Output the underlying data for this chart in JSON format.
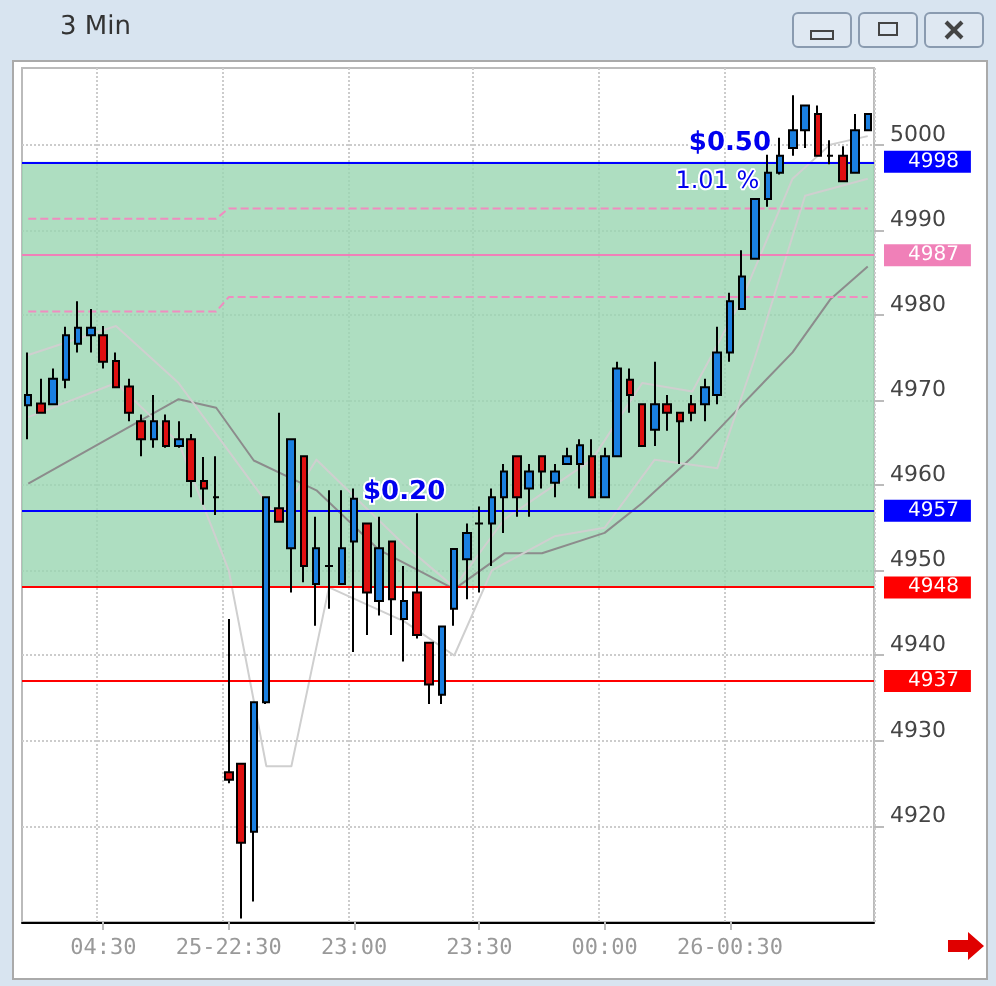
{
  "chart_data": {
    "type": "candlestick",
    "title": "3 Min",
    "categories": [
      null,
      null,
      null,
      null,
      null,
      null,
      "04:30",
      null,
      null,
      null,
      null,
      null,
      null,
      null,
      null,
      null,
      "25-22:30",
      null,
      null,
      null,
      null,
      null,
      null,
      null,
      null,
      null,
      "23:00",
      null,
      null,
      null,
      null,
      null,
      null,
      null,
      null,
      null,
      "23:30",
      null,
      null,
      null,
      null,
      null,
      null,
      null,
      null,
      null,
      "00:00",
      null,
      null,
      null,
      null,
      null,
      null,
      null,
      null,
      null,
      "26-00:30",
      null,
      null,
      null,
      null,
      null,
      null,
      null,
      null,
      null,
      null,
      null
    ],
    "ohlc": [
      [
        4969.4,
        4975.6,
        4965.4,
        4970.6
      ],
      [
        4969.6,
        4972.5,
        4968.5,
        4968.5
      ],
      [
        4969.5,
        4973.7,
        4969.5,
        4972.5
      ],
      [
        4972.4,
        4978.6,
        4971.4,
        4977.6
      ],
      [
        4976.6,
        4981.6,
        4975.6,
        4978.5
      ],
      [
        4977.6,
        4980.7,
        4975.6,
        4978.5
      ],
      [
        4977.6,
        4978.7,
        4973.7,
        4974.5
      ],
      [
        4974.6,
        4975.6,
        4971.5,
        4971.5
      ],
      [
        4971.6,
        4972.5,
        4967.5,
        4968.5
      ],
      [
        4967.5,
        4968.3,
        4963.4,
        4965.4
      ],
      [
        4965.4,
        4970.6,
        4964.4,
        4967.5
      ],
      [
        4967.5,
        4968.3,
        4964.4,
        4964.6
      ],
      [
        4964.6,
        4967.5,
        4964.4,
        4965.4
      ],
      [
        4965.4,
        4966.0,
        4958.6,
        4960.5
      ],
      [
        4960.5,
        4963.3,
        4957.7,
        4959.6
      ],
      [
        4958.6,
        4963.4,
        4956.5,
        4958.6
      ],
      [
        4926.3,
        4944.3,
        4925.0,
        4925.4
      ],
      [
        4927.3,
        4927.3,
        4909.1,
        4918.0
      ],
      [
        4919.3,
        4934.5,
        4911.1,
        4934.5
      ],
      [
        4934.5,
        4958.6,
        4934.3,
        4958.6
      ],
      [
        4957.3,
        4968.5,
        4955.7,
        4955.7
      ],
      [
        4952.6,
        4965.4,
        4947.4,
        4965.4
      ],
      [
        4963.4,
        4963.4,
        4948.6,
        4950.5
      ],
      [
        4948.4,
        4956.3,
        4943.5,
        4952.6
      ],
      [
        4950.5,
        4959.4,
        4945.5,
        4950.5
      ],
      [
        4948.4,
        4959.4,
        4948.4,
        4952.6
      ],
      [
        4953.4,
        4959.6,
        4940.4,
        4958.4
      ],
      [
        4955.5,
        4955.5,
        4942.4,
        4947.4
      ],
      [
        4946.4,
        4956.3,
        4944.7,
        4952.6
      ],
      [
        4953.4,
        4953.4,
        4942.4,
        4946.6
      ],
      [
        4944.3,
        4950.5,
        4939.3,
        4946.4
      ],
      [
        4947.4,
        4956.7,
        4942.0,
        4942.4
      ],
      [
        4941.5,
        4941.5,
        4934.3,
        4936.6
      ],
      [
        4935.4,
        4943.4,
        4934.3,
        4943.4
      ],
      [
        4945.5,
        4952.5,
        4943.5,
        4952.5
      ],
      [
        4951.3,
        4955.5,
        4946.6,
        4954.4
      ],
      [
        4955.5,
        4957.5,
        4947.4,
        4955.5
      ],
      [
        4955.5,
        4959.6,
        4950.5,
        4958.6
      ],
      [
        4958.6,
        4962.5,
        4954.4,
        4961.6
      ],
      [
        4963.4,
        4963.4,
        4956.3,
        4958.6
      ],
      [
        4959.6,
        4962.5,
        4956.3,
        4961.6
      ],
      [
        4963.4,
        4963.4,
        4959.6,
        4961.6
      ],
      [
        4960.3,
        4962.5,
        4958.6,
        4961.6
      ],
      [
        4962.5,
        4964.4,
        4962.5,
        4963.4
      ],
      [
        4962.5,
        4965.4,
        4959.6,
        4964.7
      ],
      [
        4963.4,
        4965.4,
        4958.6,
        4958.6
      ],
      [
        4958.6,
        4964.4,
        4958.6,
        4963.4
      ],
      [
        4963.4,
        4974.5,
        4963.4,
        4973.7
      ],
      [
        4972.4,
        4973.7,
        4968.5,
        4970.6
      ],
      [
        4969.5,
        4969.5,
        4964.6,
        4964.6
      ],
      [
        4966.5,
        4974.5,
        4964.6,
        4969.5
      ],
      [
        4969.5,
        4970.6,
        4966.4,
        4968.5
      ],
      [
        4968.5,
        4968.5,
        4962.5,
        4967.5
      ],
      [
        4969.5,
        4970.6,
        4967.5,
        4968.5
      ],
      [
        4969.5,
        4972.5,
        4967.5,
        4971.5
      ],
      [
        4970.6,
        4978.6,
        4969.5,
        4975.6
      ],
      [
        4975.6,
        4982.6,
        4974.5,
        4981.6
      ],
      [
        4980.7,
        4987.6,
        4980.7,
        4984.5
      ],
      [
        4986.6,
        4993.6,
        4986.6,
        4993.6
      ],
      [
        4993.6,
        4998.8,
        4992.7,
        4996.7
      ],
      [
        4996.7,
        5000.8,
        4996.5,
        4998.7
      ],
      [
        4999.6,
        5005.8,
        4998.7,
        5001.7
      ],
      [
        5001.7,
        5004.6,
        4999.6,
        5004.6
      ],
      [
        5003.6,
        5004.6,
        4998.7,
        4998.7
      ],
      [
        4998.7,
        5000.5,
        4997.7,
        4998.7
      ],
      [
        4998.7,
        4999.8,
        4995.7,
        4995.7
      ],
      [
        4996.7,
        5003.6,
        4996.7,
        5001.7
      ],
      [
        5001.7,
        5003.6,
        5001.7,
        5003.6
      ]
    ],
    "colors": [
      "#1a7fe0",
      "#e01010",
      "#1a7fe0",
      "#1a7fe0",
      "#1a7fe0",
      "#1a7fe0",
      "#e01010",
      "#e01010",
      "#e01010",
      "#e01010",
      "#1a7fe0",
      "#e01010",
      "#1a7fe0",
      "#e01010",
      "#e01010",
      "#000000",
      "#e01010",
      "#e01010",
      "#1a7fe0",
      "#1a7fe0",
      "#e01010",
      "#1a7fe0",
      "#e01010",
      "#1a7fe0",
      "#000000",
      "#1a7fe0",
      "#1a7fe0",
      "#e01010",
      "#1a7fe0",
      "#e01010",
      "#1a7fe0",
      "#e01010",
      "#e01010",
      "#1a7fe0",
      "#1a7fe0",
      "#1a7fe0",
      "#000000",
      "#1a7fe0",
      "#1a7fe0",
      "#e01010",
      "#1a7fe0",
      "#e01010",
      "#1a7fe0",
      "#1a7fe0",
      "#1a7fe0",
      "#e01010",
      "#1a7fe0",
      "#1a7fe0",
      "#e01010",
      "#e01010",
      "#1a7fe0",
      "#e01010",
      "#e01010",
      "#e01010",
      "#1a7fe0",
      "#1a7fe0",
      "#1a7fe0",
      "#1a7fe0",
      "#1a7fe0",
      "#1a7fe0",
      "#1a7fe0",
      "#1a7fe0",
      "#1a7fe0",
      "#e01010",
      "#000000",
      "#e01010",
      "#1a7fe0",
      "#1a7fe0"
    ],
    "series": [
      {
        "type": "line",
        "color": "#8c8c8c",
        "values": [
          4960.2,
          null,
          null,
          null,
          null,
          null,
          null,
          null,
          null,
          null,
          null,
          null,
          4970.1,
          null,
          null,
          4969.1,
          null,
          null,
          4962.9,
          null,
          null,
          null,
          null,
          4959.4,
          null,
          null,
          null,
          null,
          4952.4,
          null,
          null,
          null,
          null,
          null,
          4947.8,
          null,
          null,
          null,
          4952.0,
          null,
          null,
          4952.0,
          null,
          null,
          null,
          null,
          4954.4,
          null,
          null,
          4957.9,
          null,
          null,
          null,
          4963.3,
          null,
          null,
          null,
          4969.5,
          null,
          null,
          null,
          4975.6,
          null,
          null,
          4981.8,
          null,
          null,
          4985.7
        ]
      },
      {
        "type": "line",
        "color": "#cfcfcf",
        "values": [
          4975.3,
          null,
          null,
          null,
          null,
          null,
          null,
          4978.7,
          null,
          null,
          null,
          null,
          4972,
          null,
          null,
          null,
          4964,
          null,
          null,
          null,
          4956,
          null,
          null,
          4963,
          null,
          null,
          null,
          null,
          null,
          null,
          4953,
          null,
          null,
          null,
          4948,
          null,
          null,
          null,
          4956,
          null,
          null,
          null,
          null,
          null,
          null,
          4963,
          null,
          null,
          null,
          4972,
          null,
          null,
          null,
          4971,
          null,
          null,
          null,
          4982,
          null,
          null,
          null,
          4996,
          null,
          null,
          5000,
          null,
          null,
          5001
        ]
      },
      {
        "type": "line",
        "color": "#cfcfcf",
        "values": [
          4968,
          null,
          null,
          null,
          null,
          null,
          null,
          4972,
          null,
          null,
          null,
          null,
          4965,
          null,
          null,
          null,
          4950,
          null,
          null,
          4927,
          null,
          4927,
          null,
          null,
          4948,
          null,
          null,
          null,
          null,
          null,
          4944,
          null,
          null,
          null,
          4940,
          null,
          null,
          4950,
          null,
          null,
          null,
          null,
          4954,
          null,
          null,
          null,
          4955,
          null,
          null,
          null,
          4963,
          null,
          null,
          null,
          null,
          4962,
          null,
          null,
          4975,
          null,
          null,
          null,
          4994,
          null,
          null,
          null,
          null,
          4996
        ]
      },
      {
        "type": "line",
        "color": "#f08cc0",
        "line_style": "dashed",
        "values": [
          4991.3,
          4991.3,
          4991.3,
          4991.3,
          4991.3,
          4991.3,
          4991.3,
          4991.3,
          4991.3,
          4991.3,
          4991.3,
          4991.3,
          4991.3,
          4991.3,
          4991.3,
          4991.3,
          4992.5,
          4992.5,
          4992.5,
          4992.5,
          4992.5,
          4992.5,
          4992.5,
          4992.5,
          4992.5,
          4992.5,
          4992.5,
          4992.5,
          4992.5,
          4992.5,
          4992.5,
          4992.5,
          4992.5,
          4992.5,
          4992.5,
          4992.5,
          4992.5,
          4992.5,
          4992.5,
          4992.5,
          4992.5,
          4992.5,
          4992.5,
          4992.5,
          4992.5,
          4992.5,
          4992.5,
          4992.5,
          4992.5,
          4992.5,
          4992.5,
          4992.5,
          4992.5,
          4992.5,
          4992.5,
          4992.5,
          4992.5,
          4992.5,
          4992.5,
          4992.5,
          4992.5,
          4992.5,
          4992.5,
          4992.5,
          4992.5,
          4992.5,
          4992.5,
          4992.5
        ]
      },
      {
        "type": "line",
        "color": "#f08cc0",
        "line_style": "dashed",
        "values": [
          4980.4,
          4980.4,
          4980.4,
          4980.4,
          4980.4,
          4980.4,
          4980.4,
          4980.4,
          4980.4,
          4980.4,
          4980.4,
          4980.4,
          4980.4,
          4980.4,
          4980.4,
          4980.4,
          4982.1,
          4982.1,
          4982.1,
          4982.1,
          4982.1,
          4982.1,
          4982.1,
          4982.1,
          4982.1,
          4982.1,
          4982.1,
          4982.1,
          4982.1,
          4982.1,
          4982.1,
          4982.1,
          4982.1,
          4982.1,
          4982.1,
          4982.1,
          4982.1,
          4982.1,
          4982.1,
          4982.1,
          4982.1,
          4982.1,
          4982.1,
          4982.1,
          4982.1,
          4982.1,
          4982.1,
          4982.1,
          4982.1,
          4982.1,
          4982.1,
          4982.1,
          4982.1,
          4982.1,
          4982.1,
          4982.1,
          4982.1,
          4982.1,
          4982.1,
          4982.1,
          4982.1,
          4982.1,
          4982.1,
          4982.1,
          4982.1,
          4982.1,
          4982.1,
          4982.1
        ]
      }
    ],
    "ref_lines": [
      {
        "axis": "y",
        "value": 4998,
        "label": "4998",
        "color": "#0000ff"
      },
      {
        "axis": "y",
        "value": 4987,
        "label": "4987",
        "color": "#f080b8"
      },
      {
        "axis": "y",
        "value": 4957,
        "label": "4957",
        "color": "#0000ff"
      },
      {
        "axis": "y",
        "value": 4948,
        "label": "4948",
        "color": "#ff0000"
      },
      {
        "axis": "y",
        "value": 4937,
        "label": "4937",
        "color": "#ff0000"
      }
    ],
    "bands": [
      {
        "axis": "y",
        "from": 4948,
        "to": 4998,
        "color": "#9ad6b2"
      }
    ],
    "annotations": [
      {
        "text": "$0.20",
        "y": 4957
      },
      {
        "text": "$0.50",
        "y": 4998
      },
      {
        "text": "1.01 %",
        "y": 4998
      }
    ],
    "ylim": [
      4908.7,
      5009
    ],
    "yticks": [
      4920,
      4930,
      4940,
      4950,
      4960,
      4970,
      4980,
      4990,
      5000
    ],
    "grid": true,
    "marker": "none"
  }
}
